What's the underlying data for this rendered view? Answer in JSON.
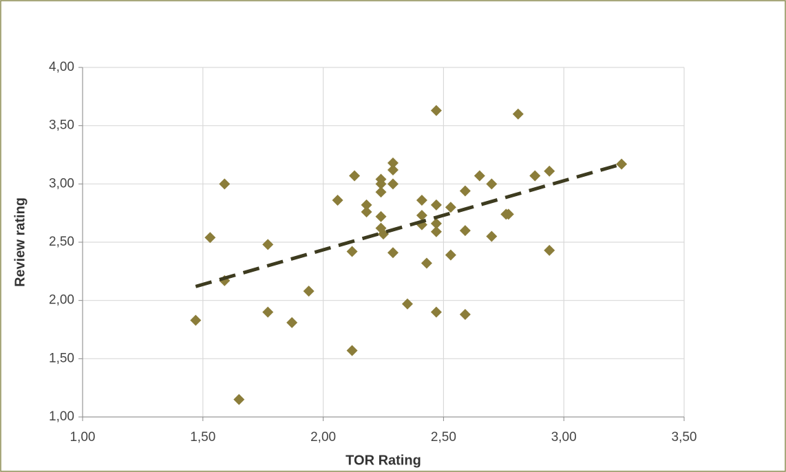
{
  "chart_data": {
    "type": "scatter",
    "x_label": "TOR Rating",
    "y_label": "Review rating",
    "xlim": [
      1,
      3.5
    ],
    "ylim": [
      1,
      4
    ],
    "xticks": [
      {
        "value": 1,
        "label": "1,00"
      },
      {
        "value": 1.5,
        "label": "1,50"
      },
      {
        "value": 2,
        "label": "2,00"
      },
      {
        "value": 2.5,
        "label": "2,50"
      },
      {
        "value": 3,
        "label": "3,00"
      },
      {
        "value": 3.5,
        "label": "3,50"
      }
    ],
    "yticks": [
      {
        "value": 1,
        "label": "1,00"
      },
      {
        "value": 1.5,
        "label": "1,50"
      },
      {
        "value": 2,
        "label": "2,00"
      },
      {
        "value": 2.5,
        "label": "2,50"
      },
      {
        "value": 3,
        "label": "3,00"
      },
      {
        "value": 3.5,
        "label": "3,50"
      },
      {
        "value": 4,
        "label": "4,00"
      }
    ],
    "grid": true,
    "color": "#8b7d3a",
    "x": [
      1.47,
      1.53,
      1.59,
      1.59,
      1.65,
      1.77,
      1.77,
      1.87,
      1.94,
      2.06,
      2.12,
      2.12,
      2.13,
      2.18,
      2.18,
      2.24,
      2.24,
      2.24,
      2.24,
      2.25,
      2.24,
      2.29,
      2.29,
      2.29,
      2.29,
      2.35,
      2.41,
      2.41,
      2.41,
      2.43,
      2.47,
      2.47,
      2.47,
      2.47,
      2.47,
      2.53,
      2.53,
      2.59,
      2.59,
      2.59,
      2.65,
      2.7,
      2.7,
      2.76,
      2.77,
      2.81,
      2.88,
      2.94,
      2.94,
      3.24
    ],
    "y": [
      1.83,
      2.54,
      3.0,
      2.17,
      1.15,
      2.48,
      1.9,
      1.81,
      2.08,
      2.86,
      2.42,
      1.57,
      3.07,
      2.82,
      2.76,
      3.04,
      2.93,
      2.72,
      2.62,
      2.57,
      3.0,
      3.18,
      3.12,
      3.0,
      2.41,
      1.97,
      2.86,
      2.73,
      2.65,
      2.32,
      3.63,
      2.82,
      2.66,
      2.59,
      1.9,
      2.8,
      2.39,
      2.94,
      2.6,
      1.88,
      3.07,
      3.0,
      2.55,
      2.74,
      2.74,
      3.6,
      3.07,
      3.11,
      2.43,
      3.17
    ],
    "trendline": {
      "x": [
        1.47,
        3.24
      ],
      "y": [
        2.12,
        3.17
      ],
      "color": "#3d3b1f"
    }
  }
}
